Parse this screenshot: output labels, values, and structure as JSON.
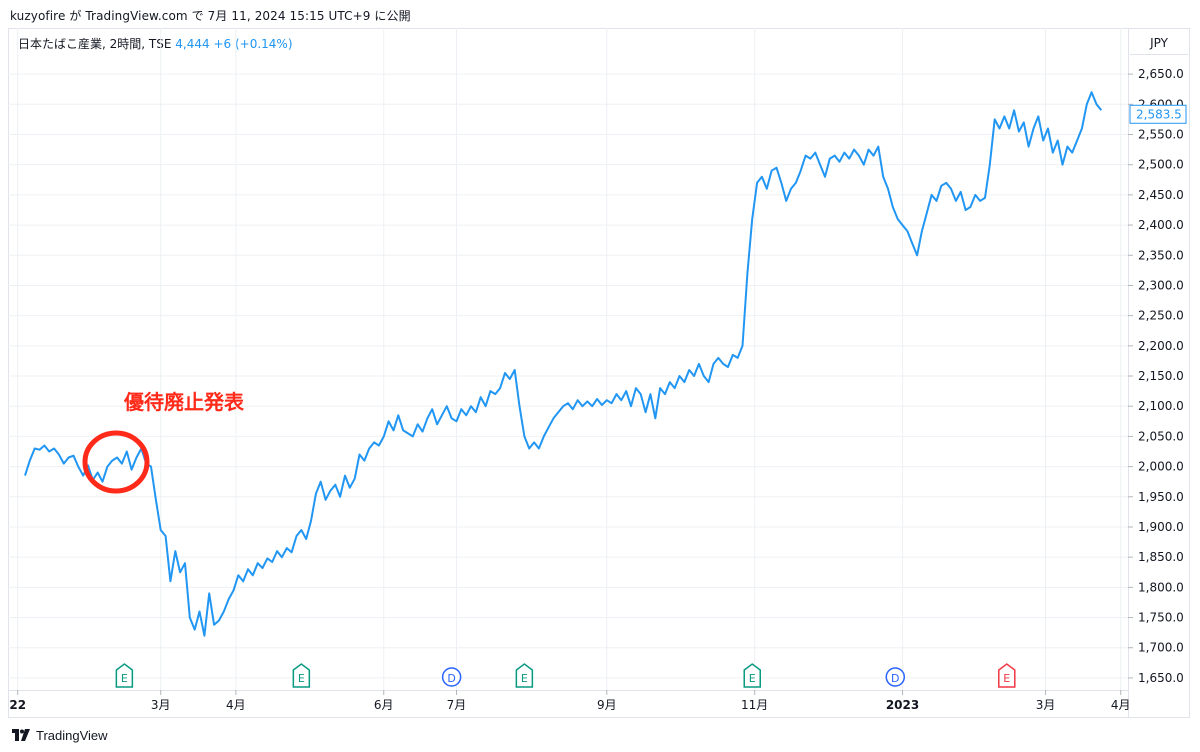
{
  "header": {
    "publish_line": "kuzyofire が TradingView.com で 7月 11, 2024 15:15 UTC+9 に公開"
  },
  "legend": {
    "symbol": "日本たばこ産業, 2時間, TSE",
    "price": "4,444",
    "change": "+6 (+0.14%)"
  },
  "currency": "JPY",
  "footer": {
    "brand": "TradingView",
    "logo_icon": "tradingview-logo-icon"
  },
  "annotation": {
    "text": "優待廃止発表"
  },
  "colors": {
    "line": "#2196f3",
    "annotation": "#ff2a1a",
    "grid": "#edf0f4",
    "earnings": "#089981",
    "earnings_red": "#f23645",
    "dividend": "#2962ff"
  },
  "chart_data": {
    "type": "line",
    "title": "",
    "xlabel": "",
    "ylabel": "",
    "ylim": [
      1630,
      2680
    ],
    "yticks": [
      1650,
      1700,
      1750,
      1800,
      1850,
      1900,
      1950,
      2000,
      2050,
      2100,
      2150,
      2200,
      2250,
      2300,
      2350,
      2400,
      2450,
      2500,
      2550,
      2600,
      2650
    ],
    "ytick_labels": [
      "1,650.0",
      "1,700.0",
      "1,750.0",
      "1,800.0",
      "1,850.0",
      "1,900.0",
      "1,950.0",
      "2,000.0",
      "2,050.0",
      "2,100.0",
      "2,150.0",
      "2,200.0",
      "2,250.0",
      "2,300.0",
      "2,350.0",
      "2,400.0",
      "2,450.0",
      "2,500.0",
      "2,550.0",
      "2,600.0",
      "2,650.0"
    ],
    "last_value_label": "2,583.5",
    "last_value": 2583.5,
    "x_ticks": [
      {
        "label": "22",
        "date": "2022-01-01",
        "bold": true
      },
      {
        "label": "3月",
        "date": "2022-03-01",
        "bold": false
      },
      {
        "label": "4月",
        "date": "2022-04-01",
        "bold": false
      },
      {
        "label": "6月",
        "date": "2022-06-01",
        "bold": false
      },
      {
        "label": "7月",
        "date": "2022-07-01",
        "bold": false
      },
      {
        "label": "9月",
        "date": "2022-09-01",
        "bold": false
      },
      {
        "label": "11月",
        "date": "2022-11-01",
        "bold": false
      },
      {
        "label": "2023",
        "date": "2023-01-01",
        "bold": true
      },
      {
        "label": "3月",
        "date": "2023-03-01",
        "bold": false
      },
      {
        "label": "4月",
        "date": "2023-04-01",
        "bold": false
      }
    ],
    "events": [
      {
        "type": "E",
        "date": "2022-02-14",
        "color": "earnings"
      },
      {
        "type": "E",
        "date": "2022-04-28",
        "color": "earnings"
      },
      {
        "type": "D",
        "date": "2022-06-29",
        "color": "dividend"
      },
      {
        "type": "E",
        "date": "2022-07-29",
        "color": "earnings"
      },
      {
        "type": "E",
        "date": "2022-10-31",
        "color": "earnings"
      },
      {
        "type": "D",
        "date": "2022-12-29",
        "color": "dividend"
      },
      {
        "type": "E",
        "date": "2023-02-13",
        "color": "earnings_red"
      }
    ],
    "series": [
      {
        "points": [
          [
            "2022-01-04",
            1985
          ],
          [
            "2022-01-06",
            2010
          ],
          [
            "2022-01-08",
            2030
          ],
          [
            "2022-01-10",
            2028
          ],
          [
            "2022-01-12",
            2035
          ],
          [
            "2022-01-14",
            2025
          ],
          [
            "2022-01-16",
            2030
          ],
          [
            "2022-01-18",
            2020
          ],
          [
            "2022-01-20",
            2005
          ],
          [
            "2022-01-22",
            2015
          ],
          [
            "2022-01-24",
            2018
          ],
          [
            "2022-01-26",
            2000
          ],
          [
            "2022-01-28",
            1985
          ],
          [
            "2022-01-30",
            2002
          ],
          [
            "2022-02-01",
            1978
          ],
          [
            "2022-02-03",
            1990
          ],
          [
            "2022-02-05",
            1975
          ],
          [
            "2022-02-07",
            2000
          ],
          [
            "2022-02-09",
            2010
          ],
          [
            "2022-02-11",
            2015
          ],
          [
            "2022-02-13",
            2005
          ],
          [
            "2022-02-15",
            2025
          ],
          [
            "2022-02-17",
            1995
          ],
          [
            "2022-02-19",
            2015
          ],
          [
            "2022-02-21",
            2030
          ],
          [
            "2022-02-23",
            2005
          ],
          [
            "2022-02-25",
            2000
          ],
          [
            "2022-02-27",
            1945
          ],
          [
            "2022-03-01",
            1895
          ],
          [
            "2022-03-03",
            1885
          ],
          [
            "2022-03-05",
            1810
          ],
          [
            "2022-03-07",
            1860
          ],
          [
            "2022-03-09",
            1825
          ],
          [
            "2022-03-11",
            1840
          ],
          [
            "2022-03-13",
            1750
          ],
          [
            "2022-03-15",
            1730
          ],
          [
            "2022-03-17",
            1760
          ],
          [
            "2022-03-19",
            1720
          ],
          [
            "2022-03-21",
            1790
          ],
          [
            "2022-03-23",
            1738
          ],
          [
            "2022-03-25",
            1745
          ],
          [
            "2022-03-27",
            1760
          ],
          [
            "2022-03-29",
            1780
          ],
          [
            "2022-03-31",
            1795
          ],
          [
            "2022-04-02",
            1820
          ],
          [
            "2022-04-04",
            1810
          ],
          [
            "2022-04-06",
            1830
          ],
          [
            "2022-04-08",
            1820
          ],
          [
            "2022-04-10",
            1840
          ],
          [
            "2022-04-12",
            1832
          ],
          [
            "2022-04-14",
            1848
          ],
          [
            "2022-04-16",
            1842
          ],
          [
            "2022-04-18",
            1860
          ],
          [
            "2022-04-20",
            1850
          ],
          [
            "2022-04-22",
            1865
          ],
          [
            "2022-04-24",
            1858
          ],
          [
            "2022-04-26",
            1885
          ],
          [
            "2022-04-28",
            1895
          ],
          [
            "2022-04-30",
            1880
          ],
          [
            "2022-05-02",
            1910
          ],
          [
            "2022-05-04",
            1955
          ],
          [
            "2022-05-06",
            1975
          ],
          [
            "2022-05-08",
            1945
          ],
          [
            "2022-05-10",
            1960
          ],
          [
            "2022-05-12",
            1970
          ],
          [
            "2022-05-14",
            1950
          ],
          [
            "2022-05-16",
            1985
          ],
          [
            "2022-05-18",
            1965
          ],
          [
            "2022-05-20",
            1980
          ],
          [
            "2022-05-22",
            2020
          ],
          [
            "2022-05-24",
            2010
          ],
          [
            "2022-05-26",
            2030
          ],
          [
            "2022-05-28",
            2040
          ],
          [
            "2022-05-30",
            2035
          ],
          [
            "2022-06-01",
            2050
          ],
          [
            "2022-06-03",
            2075
          ],
          [
            "2022-06-05",
            2060
          ],
          [
            "2022-06-07",
            2085
          ],
          [
            "2022-06-09",
            2060
          ],
          [
            "2022-06-11",
            2055
          ],
          [
            "2022-06-13",
            2050
          ],
          [
            "2022-06-15",
            2070
          ],
          [
            "2022-06-17",
            2058
          ],
          [
            "2022-06-19",
            2080
          ],
          [
            "2022-06-21",
            2095
          ],
          [
            "2022-06-23",
            2070
          ],
          [
            "2022-06-25",
            2085
          ],
          [
            "2022-06-27",
            2100
          ],
          [
            "2022-06-29",
            2080
          ],
          [
            "2022-07-01",
            2075
          ],
          [
            "2022-07-03",
            2095
          ],
          [
            "2022-07-05",
            2085
          ],
          [
            "2022-07-07",
            2100
          ],
          [
            "2022-07-09",
            2090
          ],
          [
            "2022-07-11",
            2115
          ],
          [
            "2022-07-13",
            2100
          ],
          [
            "2022-07-15",
            2125
          ],
          [
            "2022-07-17",
            2120
          ],
          [
            "2022-07-19",
            2130
          ],
          [
            "2022-07-21",
            2155
          ],
          [
            "2022-07-23",
            2145
          ],
          [
            "2022-07-25",
            2160
          ],
          [
            "2022-07-27",
            2100
          ],
          [
            "2022-07-29",
            2050
          ],
          [
            "2022-07-31",
            2030
          ],
          [
            "2022-08-02",
            2040
          ],
          [
            "2022-08-04",
            2030
          ],
          [
            "2022-08-06",
            2050
          ],
          [
            "2022-08-08",
            2065
          ],
          [
            "2022-08-10",
            2080
          ],
          [
            "2022-08-12",
            2090
          ],
          [
            "2022-08-14",
            2100
          ],
          [
            "2022-08-16",
            2105
          ],
          [
            "2022-08-18",
            2095
          ],
          [
            "2022-08-20",
            2110
          ],
          [
            "2022-08-22",
            2100
          ],
          [
            "2022-08-24",
            2108
          ],
          [
            "2022-08-26",
            2100
          ],
          [
            "2022-08-28",
            2112
          ],
          [
            "2022-08-30",
            2102
          ],
          [
            "2022-09-01",
            2110
          ],
          [
            "2022-09-03",
            2105
          ],
          [
            "2022-09-05",
            2120
          ],
          [
            "2022-09-07",
            2110
          ],
          [
            "2022-09-09",
            2125
          ],
          [
            "2022-09-11",
            2100
          ],
          [
            "2022-09-13",
            2130
          ],
          [
            "2022-09-15",
            2120
          ],
          [
            "2022-09-17",
            2090
          ],
          [
            "2022-09-19",
            2120
          ],
          [
            "2022-09-21",
            2080
          ],
          [
            "2022-09-23",
            2130
          ],
          [
            "2022-09-25",
            2120
          ],
          [
            "2022-09-27",
            2140
          ],
          [
            "2022-09-29",
            2130
          ],
          [
            "2022-10-01",
            2150
          ],
          [
            "2022-10-03",
            2140
          ],
          [
            "2022-10-05",
            2160
          ],
          [
            "2022-10-07",
            2150
          ],
          [
            "2022-10-09",
            2170
          ],
          [
            "2022-10-11",
            2150
          ],
          [
            "2022-10-13",
            2140
          ],
          [
            "2022-10-15",
            2170
          ],
          [
            "2022-10-17",
            2180
          ],
          [
            "2022-10-19",
            2170
          ],
          [
            "2022-10-21",
            2165
          ],
          [
            "2022-10-23",
            2185
          ],
          [
            "2022-10-25",
            2180
          ],
          [
            "2022-10-27",
            2200
          ],
          [
            "2022-10-29",
            2320
          ],
          [
            "2022-10-31",
            2410
          ],
          [
            "2022-11-02",
            2470
          ],
          [
            "2022-11-04",
            2480
          ],
          [
            "2022-11-06",
            2460
          ],
          [
            "2022-11-08",
            2490
          ],
          [
            "2022-11-10",
            2495
          ],
          [
            "2022-11-12",
            2470
          ],
          [
            "2022-11-14",
            2440
          ],
          [
            "2022-11-16",
            2460
          ],
          [
            "2022-11-18",
            2470
          ],
          [
            "2022-11-20",
            2490
          ],
          [
            "2022-11-22",
            2515
          ],
          [
            "2022-11-24",
            2510
          ],
          [
            "2022-11-26",
            2520
          ],
          [
            "2022-11-28",
            2500
          ],
          [
            "2022-11-30",
            2480
          ],
          [
            "2022-12-02",
            2510
          ],
          [
            "2022-12-04",
            2515
          ],
          [
            "2022-12-06",
            2505
          ],
          [
            "2022-12-08",
            2520
          ],
          [
            "2022-12-10",
            2510
          ],
          [
            "2022-12-12",
            2525
          ],
          [
            "2022-12-14",
            2515
          ],
          [
            "2022-12-16",
            2500
          ],
          [
            "2022-12-18",
            2525
          ],
          [
            "2022-12-20",
            2515
          ],
          [
            "2022-12-22",
            2530
          ],
          [
            "2022-12-24",
            2480
          ],
          [
            "2022-12-26",
            2460
          ],
          [
            "2022-12-28",
            2430
          ],
          [
            "2022-12-30",
            2410
          ],
          [
            "2023-01-01",
            2400
          ],
          [
            "2023-01-03",
            2390
          ],
          [
            "2023-01-05",
            2370
          ],
          [
            "2023-01-07",
            2350
          ],
          [
            "2023-01-09",
            2390
          ],
          [
            "2023-01-11",
            2420
          ],
          [
            "2023-01-13",
            2450
          ],
          [
            "2023-01-15",
            2440
          ],
          [
            "2023-01-17",
            2465
          ],
          [
            "2023-01-19",
            2470
          ],
          [
            "2023-01-21",
            2460
          ],
          [
            "2023-01-23",
            2440
          ],
          [
            "2023-01-25",
            2455
          ],
          [
            "2023-01-27",
            2425
          ],
          [
            "2023-01-29",
            2430
          ],
          [
            "2023-01-31",
            2450
          ],
          [
            "2023-02-02",
            2440
          ],
          [
            "2023-02-04",
            2445
          ],
          [
            "2023-02-06",
            2500
          ],
          [
            "2023-02-08",
            2575
          ],
          [
            "2023-02-10",
            2560
          ],
          [
            "2023-02-12",
            2580
          ],
          [
            "2023-02-14",
            2560
          ],
          [
            "2023-02-16",
            2590
          ],
          [
            "2023-02-18",
            2555
          ],
          [
            "2023-02-20",
            2570
          ],
          [
            "2023-02-22",
            2530
          ],
          [
            "2023-02-24",
            2560
          ],
          [
            "2023-02-26",
            2580
          ],
          [
            "2023-02-28",
            2540
          ],
          [
            "2023-03-02",
            2560
          ],
          [
            "2023-03-04",
            2520
          ],
          [
            "2023-03-06",
            2540
          ],
          [
            "2023-03-08",
            2500
          ],
          [
            "2023-03-10",
            2530
          ],
          [
            "2023-03-12",
            2520
          ],
          [
            "2023-03-14",
            2540
          ],
          [
            "2023-03-16",
            2560
          ],
          [
            "2023-03-18",
            2600
          ],
          [
            "2023-03-20",
            2620
          ],
          [
            "2023-03-22",
            2600
          ],
          [
            "2023-03-24",
            2590
          ]
        ]
      }
    ]
  }
}
